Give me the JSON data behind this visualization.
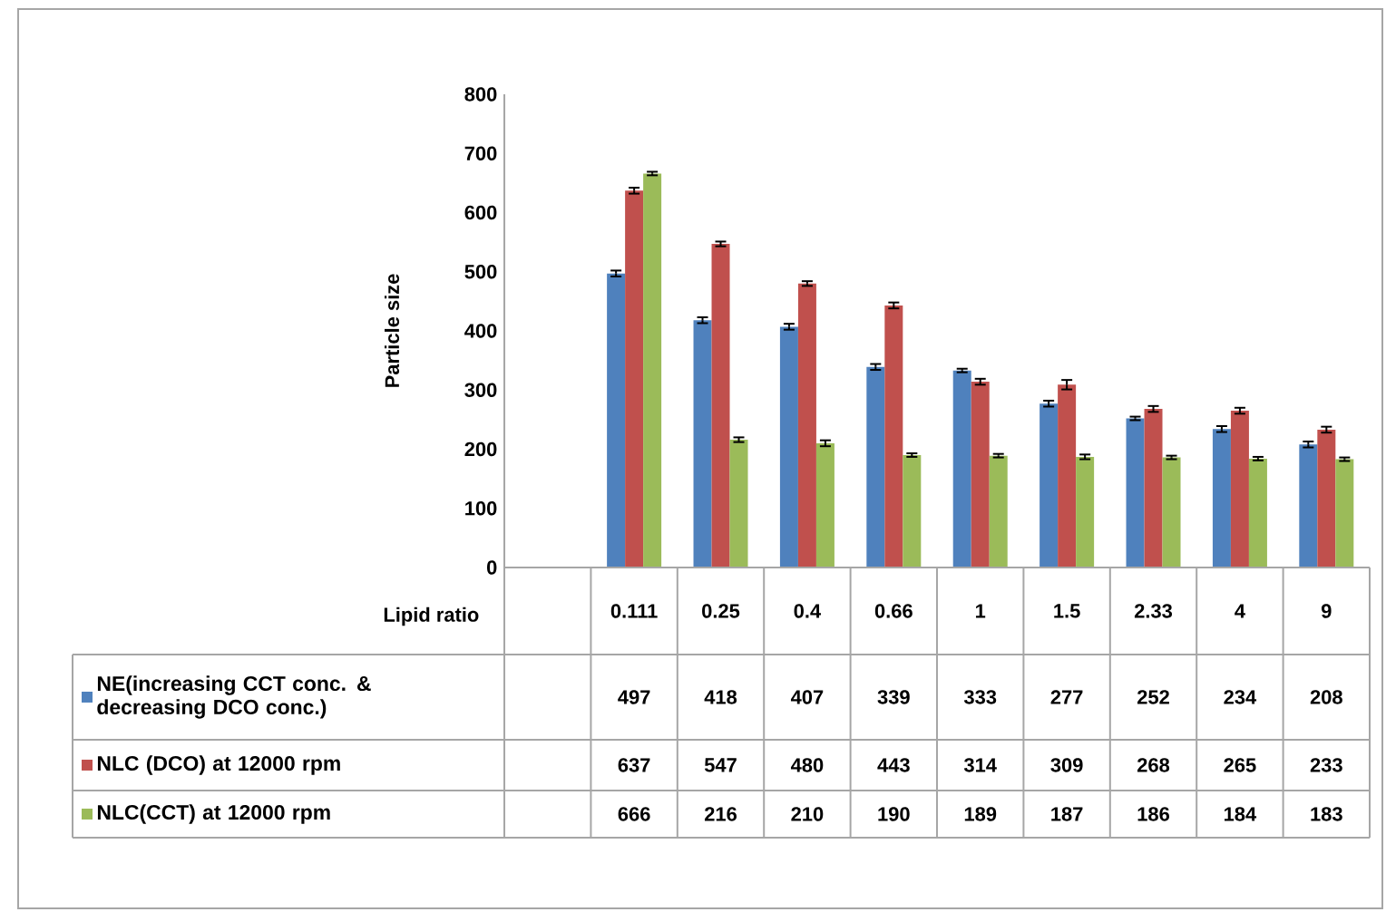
{
  "chart_data": {
    "type": "bar",
    "xlabel": "Lipid ratio",
    "ylabel": "Particle size",
    "categories": [
      "0.111",
      "0.25",
      "0.4",
      "0.66",
      "1",
      "1.5",
      "2.33",
      "4",
      "9"
    ],
    "series": [
      {
        "name": "NE(increasing CCT conc. & decreasing DCO conc.)",
        "color": "#4f81bd",
        "values": [
          497,
          418,
          407,
          339,
          333,
          277,
          252,
          234,
          208
        ],
        "errors": [
          5,
          5,
          5,
          5,
          3,
          5,
          3,
          5,
          5
        ]
      },
      {
        "name": "NLC (DCO) at 12000 rpm",
        "color": "#c0504d",
        "values": [
          637,
          547,
          480,
          443,
          314,
          309,
          268,
          265,
          233
        ],
        "errors": [
          5,
          4,
          4,
          5,
          5,
          8,
          5,
          5,
          5
        ]
      },
      {
        "name": "NLC(CCT) at 12000 rpm",
        "color": "#9bbb59",
        "values": [
          666,
          216,
          210,
          190,
          189,
          187,
          186,
          184,
          183
        ],
        "errors": [
          3,
          4,
          5,
          3,
          3,
          4,
          3,
          3,
          3
        ]
      }
    ],
    "ylim": [
      0,
      800
    ],
    "yticks": [
      0,
      100,
      200,
      300,
      400,
      500,
      600,
      700,
      800
    ],
    "data_labels": true,
    "legend": "bottom"
  }
}
